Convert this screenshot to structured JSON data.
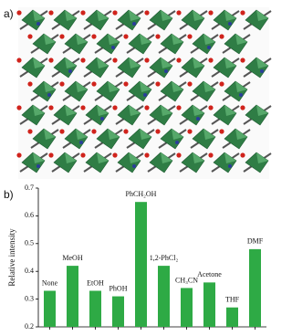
{
  "panel_labels": [
    "a)",
    "b)"
  ],
  "chart_data": {
    "type": "bar",
    "y_label": "Relative intensity",
    "categories": [
      "None",
      "MeOH",
      "EtOH",
      "PhOH",
      "PhCH₂OH",
      "1,2-PhCl₂",
      "CH₃CN",
      "Acetone",
      "THF",
      "DMF"
    ],
    "values": [
      0.33,
      0.42,
      0.33,
      0.31,
      0.65,
      0.42,
      0.34,
      0.36,
      0.27,
      0.48
    ],
    "color": "#2eaa45",
    "ylim": [
      0.2,
      0.7
    ],
    "yticks": [
      0.2,
      0.3,
      0.4,
      0.5,
      0.6,
      0.7
    ]
  }
}
